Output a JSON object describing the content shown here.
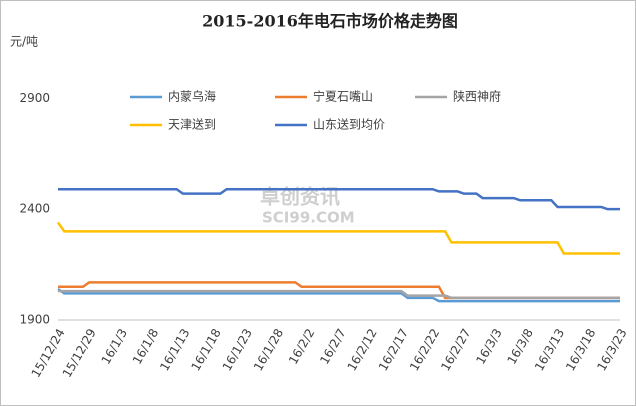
{
  "chart_data": {
    "type": "line",
    "title": "2015-2016年电石市场价格走势图",
    "y_axis_label": "元/吨",
    "watermark": [
      "卓创资讯",
      "SCI99.COM"
    ],
    "categories": [
      "15/12/24",
      null,
      null,
      null,
      null,
      "15/12/29",
      null,
      null,
      null,
      null,
      "16/1/3",
      null,
      null,
      null,
      null,
      "16/1/8",
      null,
      null,
      null,
      null,
      "16/1/13",
      null,
      null,
      null,
      null,
      "16/1/18",
      null,
      null,
      null,
      null,
      "16/1/23",
      null,
      null,
      null,
      null,
      "16/1/28",
      null,
      null,
      null,
      null,
      "16/2/2",
      null,
      null,
      null,
      null,
      "16/2/7",
      null,
      null,
      null,
      null,
      "16/2/12",
      null,
      null,
      null,
      null,
      "16/2/17",
      null,
      null,
      null,
      null,
      "16/2/22",
      null,
      null,
      null,
      null,
      "16/2/27",
      null,
      null,
      null,
      null,
      "16/3/3",
      null,
      null,
      null,
      null,
      "16/3/8",
      null,
      null,
      null,
      null,
      "16/3/13",
      null,
      null,
      null,
      null,
      "16/3/18",
      null,
      null,
      null,
      null,
      "16/3/23"
    ],
    "series": [
      {
        "name": "内蒙乌海",
        "color": "#5b9bd5",
        "values": [
          2040,
          2020,
          2020,
          2020,
          2020,
          2020,
          2020,
          2020,
          2020,
          2020,
          2020,
          2020,
          2020,
          2020,
          2020,
          2020,
          2020,
          2020,
          2020,
          2020,
          2020,
          2020,
          2020,
          2020,
          2020,
          2020,
          2020,
          2020,
          2020,
          2020,
          2020,
          2020,
          2020,
          2020,
          2020,
          2020,
          2020,
          2020,
          2020,
          2020,
          2020,
          2020,
          2020,
          2020,
          2020,
          2020,
          2020,
          2020,
          2020,
          2020,
          2020,
          2020,
          2020,
          2020,
          2020,
          2020,
          2000,
          2000,
          2000,
          2000,
          2000,
          1985,
          1985,
          1985,
          1985,
          1985,
          1985,
          1985,
          1985,
          1985,
          1985,
          1985,
          1985,
          1985,
          1985,
          1985,
          1985,
          1985,
          1985,
          1985,
          1985,
          1985,
          1985,
          1985,
          1985,
          1985,
          1985,
          1985,
          1985,
          1985,
          1985
        ]
      },
      {
        "name": "宁夏石嘴山",
        "color": "#ed7d31",
        "values": [
          2050,
          2050,
          2050,
          2050,
          2050,
          2070,
          2070,
          2070,
          2070,
          2070,
          2070,
          2070,
          2070,
          2070,
          2070,
          2070,
          2070,
          2070,
          2070,
          2070,
          2070,
          2070,
          2070,
          2070,
          2070,
          2070,
          2070,
          2070,
          2070,
          2070,
          2070,
          2070,
          2070,
          2070,
          2070,
          2070,
          2070,
          2070,
          2070,
          2050,
          2050,
          2050,
          2050,
          2050,
          2050,
          2050,
          2050,
          2050,
          2050,
          2050,
          2050,
          2050,
          2050,
          2050,
          2050,
          2050,
          2050,
          2050,
          2050,
          2050,
          2050,
          2050,
          2000,
          2000,
          2000,
          2000,
          2000,
          2000,
          2000,
          2000,
          2000,
          2000,
          2000,
          2000,
          2000,
          2000,
          2000,
          2000,
          2000,
          2000,
          2000,
          2000,
          2000,
          2000,
          2000,
          2000,
          2000,
          2000,
          2000,
          2000,
          2000
        ]
      },
      {
        "name": "陕西神府",
        "color": "#a5a5a5",
        "values": [
          2030,
          2030,
          2030,
          2030,
          2030,
          2030,
          2030,
          2030,
          2030,
          2030,
          2030,
          2030,
          2030,
          2030,
          2030,
          2030,
          2030,
          2030,
          2030,
          2030,
          2030,
          2030,
          2030,
          2030,
          2030,
          2030,
          2030,
          2030,
          2030,
          2030,
          2030,
          2030,
          2030,
          2030,
          2030,
          2030,
          2030,
          2030,
          2030,
          2030,
          2030,
          2030,
          2030,
          2030,
          2030,
          2030,
          2030,
          2030,
          2030,
          2030,
          2030,
          2030,
          2030,
          2030,
          2030,
          2030,
          2010,
          2010,
          2010,
          2010,
          2010,
          2010,
          2010,
          2000,
          2000,
          2000,
          2000,
          2000,
          2000,
          2000,
          2000,
          2000,
          2000,
          2000,
          2000,
          2000,
          2000,
          2000,
          2000,
          2000,
          2000,
          2000,
          2000,
          2000,
          2000,
          2000,
          2000,
          2000,
          2000,
          2000,
          2000
        ]
      },
      {
        "name": "天津送到",
        "color": "#ffc000",
        "values": [
          2340,
          2300,
          2300,
          2300,
          2300,
          2300,
          2300,
          2300,
          2300,
          2300,
          2300,
          2300,
          2300,
          2300,
          2300,
          2300,
          2300,
          2300,
          2300,
          2300,
          2300,
          2300,
          2300,
          2300,
          2300,
          2300,
          2300,
          2300,
          2300,
          2300,
          2300,
          2300,
          2300,
          2300,
          2300,
          2300,
          2300,
          2300,
          2300,
          2300,
          2300,
          2300,
          2300,
          2300,
          2300,
          2300,
          2300,
          2300,
          2300,
          2300,
          2300,
          2300,
          2300,
          2300,
          2300,
          2300,
          2300,
          2300,
          2300,
          2300,
          2300,
          2300,
          2300,
          2250,
          2250,
          2250,
          2250,
          2250,
          2250,
          2250,
          2250,
          2250,
          2250,
          2250,
          2250,
          2250,
          2250,
          2250,
          2250,
          2250,
          2250,
          2200,
          2200,
          2200,
          2200,
          2200,
          2200,
          2200,
          2200,
          2200,
          2200
        ]
      },
      {
        "name": "山东送到均价",
        "color": "#4472c4",
        "values": [
          2490,
          2490,
          2490,
          2490,
          2490,
          2490,
          2490,
          2490,
          2490,
          2490,
          2490,
          2490,
          2490,
          2490,
          2490,
          2490,
          2490,
          2490,
          2490,
          2490,
          2470,
          2470,
          2470,
          2470,
          2470,
          2470,
          2470,
          2490,
          2490,
          2490,
          2490,
          2490,
          2490,
          2490,
          2490,
          2490,
          2490,
          2490,
          2490,
          2490,
          2490,
          2490,
          2490,
          2490,
          2490,
          2490,
          2490,
          2490,
          2490,
          2490,
          2490,
          2490,
          2490,
          2490,
          2490,
          2490,
          2490,
          2490,
          2490,
          2490,
          2490,
          2480,
          2480,
          2480,
          2480,
          2470,
          2470,
          2470,
          2450,
          2450,
          2450,
          2450,
          2450,
          2450,
          2440,
          2440,
          2440,
          2440,
          2440,
          2440,
          2410,
          2410,
          2410,
          2410,
          2410,
          2410,
          2410,
          2410,
          2400,
          2400,
          2400
        ]
      }
    ],
    "ylim": [
      1900,
      3100
    ],
    "yticks": [
      1900,
      2400,
      2900
    ],
    "grid": false,
    "legend": "top"
  }
}
